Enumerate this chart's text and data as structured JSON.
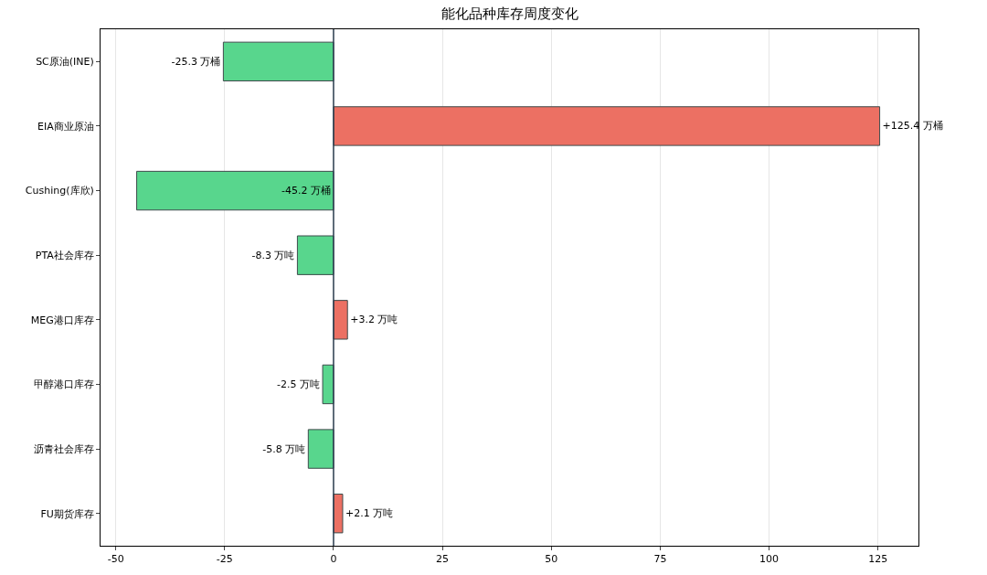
{
  "chart_data": {
    "type": "bar",
    "orientation": "horizontal",
    "title": "能化品种库存周度变化",
    "categories": [
      "SC原油(INE)",
      "EIA商业原油",
      "Cushing(库欣)",
      "PTA社会库存",
      "MEG港口库存",
      "甲醇港口库存",
      "沥青社会库存",
      "FU期货库存"
    ],
    "values": [
      -25.3,
      125.4,
      -45.2,
      -8.3,
      3.2,
      -2.5,
      -5.8,
      2.1
    ],
    "colors": [
      "#58d68d",
      "#ec7063",
      "#58d68d",
      "#58d68d",
      "#ec7063",
      "#58d68d",
      "#58d68d",
      "#ec7063"
    ],
    "value_labels": [
      "-25.3 万桶",
      "+125.4 万桶",
      "-45.2 万桶",
      "-8.3 万吨",
      "+3.2 万吨",
      "-2.5 万吨",
      "-5.8 万吨",
      "+2.1 万吨"
    ],
    "xlim": [
      -53.5,
      134.3
    ],
    "xticks": [
      -50,
      -25,
      0,
      25,
      50,
      75,
      100,
      125
    ],
    "ref_lines": [
      {
        "axis": "x",
        "value": 0,
        "color": "#2c3e50"
      }
    ],
    "grid": "x",
    "legend": false
  }
}
